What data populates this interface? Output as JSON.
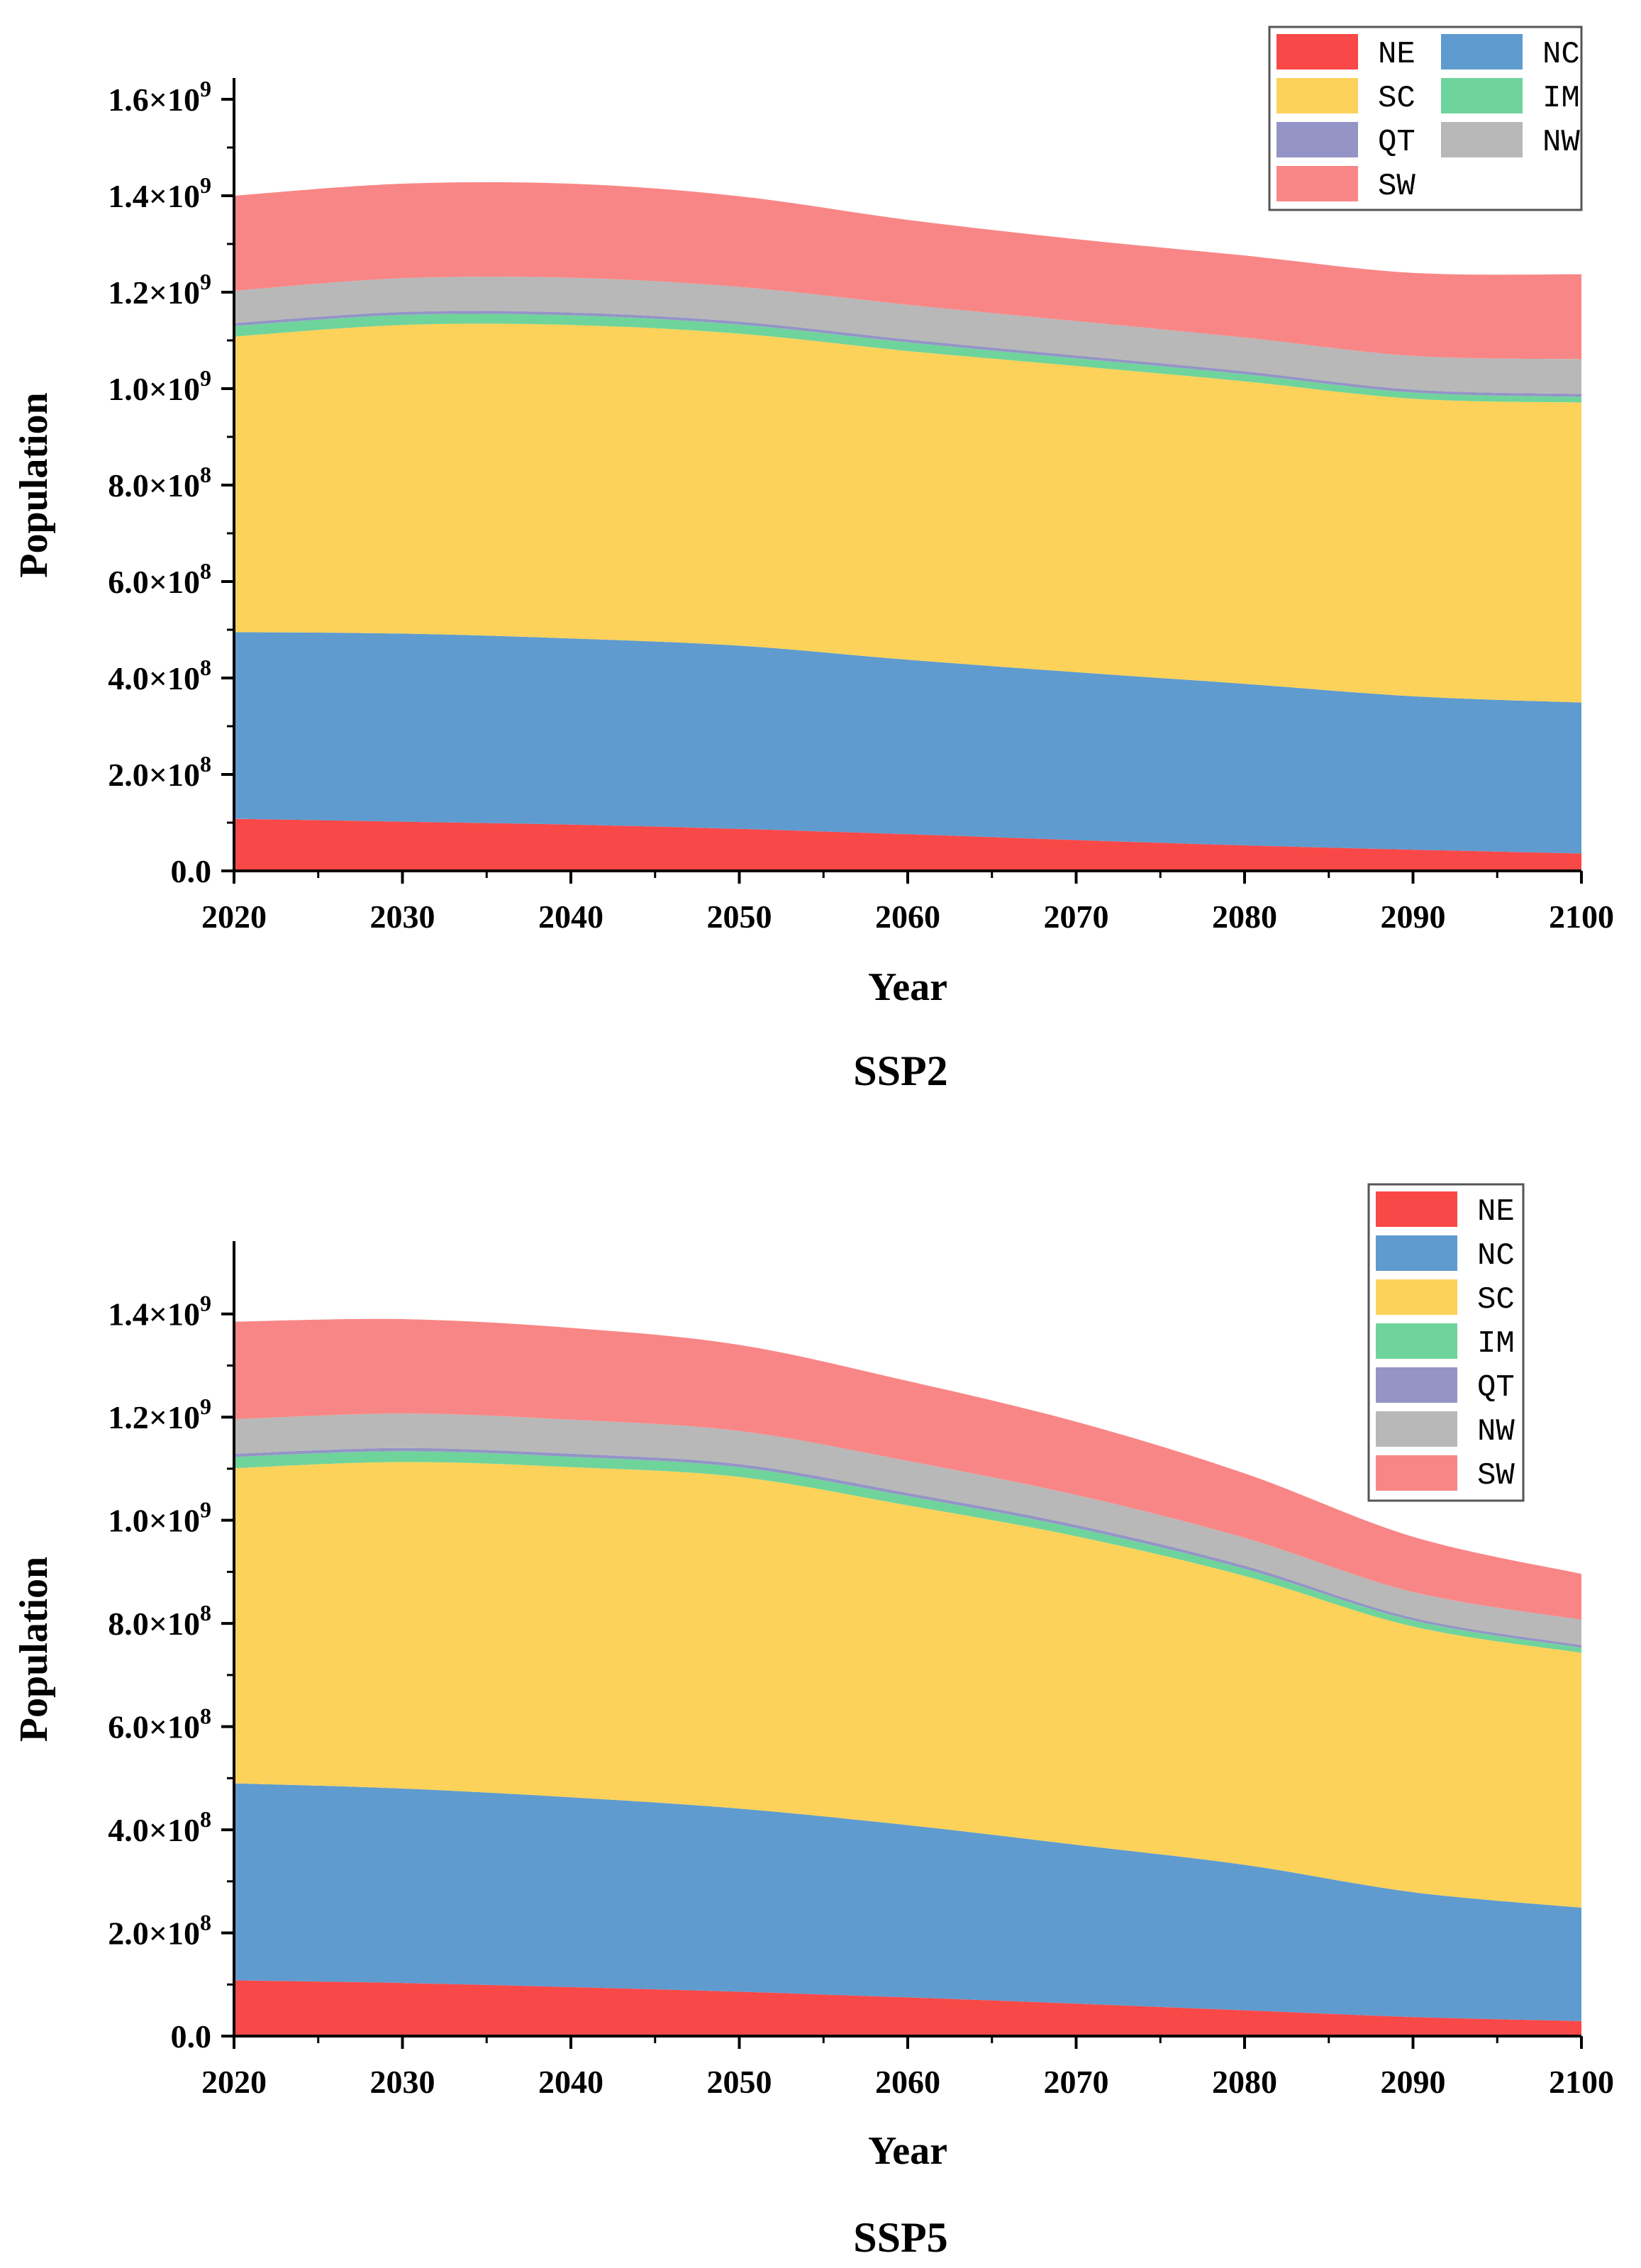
{
  "chart_data": [
    {
      "type": "area",
      "title": "SSP2",
      "xlabel": "Year",
      "ylabel": "Population",
      "xlim": [
        2020,
        2100
      ],
      "ylim": [
        0,
        1600000000
      ],
      "x_ticks": [
        2020,
        2030,
        2040,
        2050,
        2060,
        2070,
        2080,
        2090,
        2100
      ],
      "x_tick_labels": [
        "2020",
        "2030",
        "2040",
        "2050",
        "2060",
        "2070",
        "2080",
        "2090",
        "2100"
      ],
      "y_ticks": [
        0,
        200000000,
        400000000,
        600000000,
        800000000,
        1000000000,
        1200000000,
        1400000000,
        1600000000
      ],
      "y_tick_labels": [
        {
          "m": "0.0",
          "e": ""
        },
        {
          "m": "2.0×10",
          "e": "8"
        },
        {
          "m": "4.0×10",
          "e": "8"
        },
        {
          "m": "6.0×10",
          "e": "8"
        },
        {
          "m": "8.0×10",
          "e": "8"
        },
        {
          "m": "1.0×10",
          "e": "9"
        },
        {
          "m": "1.2×10",
          "e": "9"
        },
        {
          "m": "1.4×10",
          "e": "9"
        },
        {
          "m": "1.6×10",
          "e": "9"
        }
      ],
      "legend_layout": "two-column",
      "legend_position": "top-right",
      "legend_order": [
        "NE",
        "NC",
        "SC",
        "IM",
        "QT",
        "NW",
        "SW"
      ],
      "x": [
        2020,
        2030,
        2040,
        2050,
        2060,
        2070,
        2080,
        2090,
        2100
      ],
      "series": [
        {
          "name": "NE",
          "color": "#f94848",
          "values": [
            108000000,
            102000000,
            96000000,
            87000000,
            76000000,
            64000000,
            53000000,
            44000000,
            36000000
          ]
        },
        {
          "name": "NC",
          "color": "#5f9bcf",
          "values": [
            387000000,
            390000000,
            386000000,
            380000000,
            362000000,
            348000000,
            335000000,
            318000000,
            313000000
          ]
        },
        {
          "name": "SC",
          "color": "#fdd25a",
          "values": [
            613000000,
            640000000,
            650000000,
            647000000,
            640000000,
            635000000,
            627000000,
            617000000,
            622000000
          ]
        },
        {
          "name": "IM",
          "color": "#6fd49b",
          "values": [
            22000000,
            21000000,
            20000000,
            19000000,
            18000000,
            16000000,
            15000000,
            13000000,
            12000000
          ]
        },
        {
          "name": "QT",
          "color": "#9494c6",
          "values": [
            6000000,
            6000000,
            6000000,
            6000000,
            6000000,
            6000000,
            6000000,
            6000000,
            6000000
          ]
        },
        {
          "name": "NW",
          "color": "#b8b8b8",
          "values": [
            67000000,
            70000000,
            72000000,
            72000000,
            72000000,
            71000000,
            70000000,
            70000000,
            72000000
          ]
        },
        {
          "name": "SW",
          "color": "#f98686",
          "values": [
            197000000,
            196000000,
            195000000,
            188000000,
            176000000,
            170000000,
            170000000,
            172000000,
            176000000
          ]
        }
      ]
    },
    {
      "type": "area",
      "title": "SSP5",
      "xlabel": "Year",
      "ylabel": "Population",
      "xlim": [
        2020,
        2100
      ],
      "ylim": [
        0,
        1500000000
      ],
      "x_ticks": [
        2020,
        2030,
        2040,
        2050,
        2060,
        2070,
        2080,
        2090,
        2100
      ],
      "x_tick_labels": [
        "2020",
        "2030",
        "2040",
        "2050",
        "2060",
        "2070",
        "2080",
        "2090",
        "2100"
      ],
      "y_ticks": [
        0,
        200000000,
        400000000,
        600000000,
        800000000,
        1000000000,
        1200000000,
        1400000000
      ],
      "y_tick_labels": [
        {
          "m": "0.0",
          "e": ""
        },
        {
          "m": "2.0×10",
          "e": "8"
        },
        {
          "m": "4.0×10",
          "e": "8"
        },
        {
          "m": "6.0×10",
          "e": "8"
        },
        {
          "m": "8.0×10",
          "e": "8"
        },
        {
          "m": "1.0×10",
          "e": "9"
        },
        {
          "m": "1.2×10",
          "e": "9"
        },
        {
          "m": "1.4×10",
          "e": "9"
        }
      ],
      "legend_layout": "one-column",
      "legend_position": "top-right",
      "legend_order": [
        "NE",
        "NC",
        "SC",
        "IM",
        "QT",
        "NW",
        "SW"
      ],
      "x": [
        2020,
        2030,
        2040,
        2050,
        2060,
        2070,
        2080,
        2090,
        2100
      ],
      "series": [
        {
          "name": "NE",
          "color": "#f94848",
          "values": [
            108000000,
            103000000,
            95000000,
            86000000,
            75000000,
            63000000,
            50000000,
            37000000,
            29000000
          ]
        },
        {
          "name": "NC",
          "color": "#5f9bcf",
          "values": [
            382000000,
            377000000,
            368000000,
            355000000,
            334000000,
            308000000,
            282000000,
            242000000,
            220000000
          ]
        },
        {
          "name": "SC",
          "color": "#fdd25a",
          "values": [
            611000000,
            633000000,
            640000000,
            643000000,
            620000000,
            598000000,
            560000000,
            515000000,
            494000000
          ]
        },
        {
          "name": "IM",
          "color": "#6fd49b",
          "values": [
            22000000,
            21000000,
            20000000,
            19000000,
            18000000,
            16000000,
            14000000,
            12000000,
            10000000
          ]
        },
        {
          "name": "QT",
          "color": "#9494c6",
          "values": [
            6000000,
            6000000,
            6000000,
            6000000,
            6000000,
            6000000,
            6000000,
            5000000,
            5000000
          ]
        },
        {
          "name": "NW",
          "color": "#b8b8b8",
          "values": [
            67000000,
            67000000,
            66000000,
            64000000,
            62000000,
            58000000,
            54000000,
            50000000,
            49000000
          ]
        },
        {
          "name": "SW",
          "color": "#f98686",
          "values": [
            189000000,
            183000000,
            178000000,
            167000000,
            155000000,
            142000000,
            125000000,
            107000000,
            89000000
          ]
        }
      ]
    }
  ]
}
